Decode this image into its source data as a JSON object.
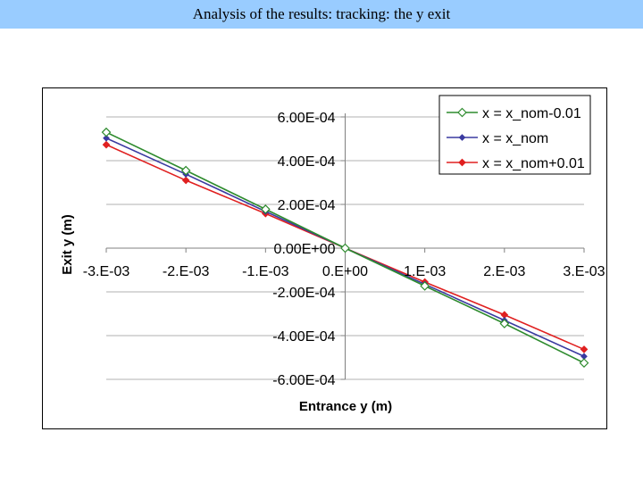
{
  "page": {
    "title": "Analysis of the results: tracking: the y exit"
  },
  "colors": {
    "title_bar": "#99ccff"
  },
  "chart_data": {
    "type": "line",
    "xlabel": "Entrance y (m)",
    "ylabel": "Exit y (m)",
    "xlim": [
      -0.003,
      0.003
    ],
    "ylim": [
      -0.0006,
      0.0006
    ],
    "grid": "horizontal",
    "legend_position": "top-right",
    "x_tick_values": [
      -0.003,
      -0.002,
      -0.001,
      0,
      0.001,
      0.002,
      0.003
    ],
    "x_tick_labels": [
      "-3.E-03",
      "-2.E-03",
      "-1.E-03",
      "0.E+00",
      "1.E-03",
      "2.E-03",
      "3.E-03"
    ],
    "y_tick_values": [
      0.0006,
      0.0004,
      0.0002,
      0,
      -0.0002,
      -0.0004,
      -0.0006
    ],
    "y_tick_labels": [
      "6.00E-04",
      "4.00E-04",
      "2.00E-04",
      "0.00E+00",
      "-2.00E-04",
      "-4.00E-04",
      "-6.00E-04"
    ],
    "x": [
      -0.003,
      -0.002,
      -0.001,
      0,
      0.001,
      0.002,
      0.003
    ],
    "series": [
      {
        "name": "x = x_nom-0.01",
        "color": "#2e8b2e",
        "marker": "diamond-open",
        "values": [
          0.00053,
          0.000355,
          0.000178,
          0,
          -0.000173,
          -0.000345,
          -0.000525
        ]
      },
      {
        "name": "x = x_nom",
        "color": "#3a3aa0",
        "marker": "diamond-small",
        "values": [
          0.000503,
          0.000338,
          0.000168,
          0,
          -0.000165,
          -0.00033,
          -0.000495
        ]
      },
      {
        "name": "x = x_nom+0.01",
        "color": "#e02020",
        "marker": "diamond-filled",
        "values": [
          0.000473,
          0.00031,
          0.000158,
          0,
          -0.000155,
          -0.000305,
          -0.000463
        ]
      }
    ]
  }
}
